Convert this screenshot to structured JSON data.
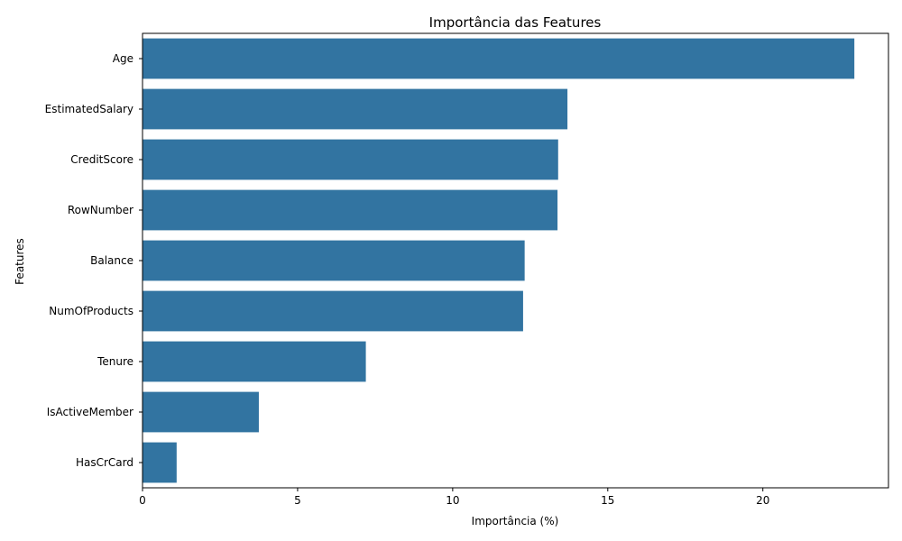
{
  "chart_data": {
    "type": "bar",
    "orientation": "horizontal",
    "title": "Importância das Features",
    "xlabel": "Importância (%)",
    "ylabel": "Features",
    "categories": [
      "Age",
      "EstimatedSalary",
      "CreditScore",
      "RowNumber",
      "Balance",
      "NumOfProducts",
      "Tenure",
      "IsActiveMember",
      "HasCrCard"
    ],
    "values": [
      22.95,
      13.7,
      13.4,
      13.38,
      12.32,
      12.27,
      7.2,
      3.75,
      1.1
    ],
    "xlim": [
      0,
      24.05
    ],
    "xticks": [
      0,
      5,
      10,
      15,
      20
    ],
    "grid": false,
    "bar_color": "#3274a1"
  }
}
